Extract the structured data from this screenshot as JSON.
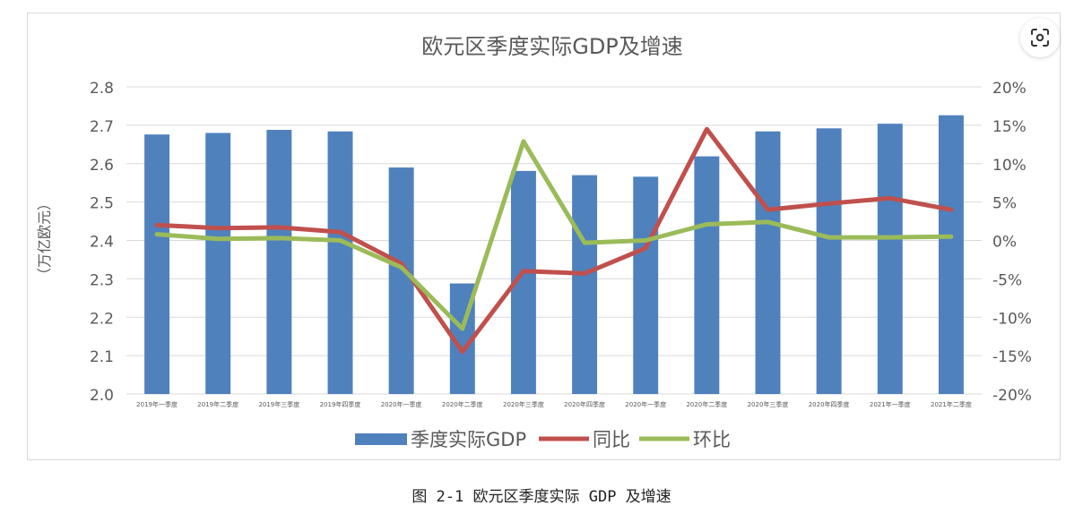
{
  "caption": "图 2-1 欧元区季度实际 GDP 及增速",
  "lens_icon": "visual-search-icon",
  "colors": {
    "bar": "#4f81bd",
    "yoy": "#c0504d",
    "qoq": "#9bbb59",
    "grid": "#d9d9d9",
    "axis_text": "#595959"
  },
  "chart_data": {
    "type": "bar",
    "title": "欧元区季度实际GDP及增速",
    "ylabel": "（万亿欧元）",
    "ylim": [
      2.0,
      2.8
    ],
    "y_ticks": [
      "2.0",
      "2.1",
      "2.2",
      "2.3",
      "2.4",
      "2.5",
      "2.6",
      "2.7",
      "2.8"
    ],
    "y2lim": [
      -20,
      20
    ],
    "y2_ticks": [
      "-20%",
      "-15%",
      "-10%",
      "-5%",
      "0%",
      "5%",
      "10%",
      "15%",
      "20%"
    ],
    "categories": [
      "2019年一季度",
      "2019年二季度",
      "2019年三季度",
      "2019年四季度",
      "2020年一季度",
      "2020年二季度",
      "2020年三季度",
      "2020年四季度",
      "2020年一季度",
      "2020年二季度",
      "2020年三季度",
      "2020年四季度",
      "2021年一季度",
      "2021年二季度"
    ],
    "legend_position": "bottom",
    "grid": true,
    "series": [
      {
        "name": "季度实际GDP",
        "type": "bar",
        "axis": "left",
        "values": [
          2.676,
          2.68,
          2.688,
          2.684,
          2.59,
          2.288,
          2.581,
          2.57,
          2.566,
          2.619,
          2.684,
          2.692,
          2.704,
          2.726
        ]
      },
      {
        "name": "同比",
        "type": "line",
        "axis": "right",
        "values": [
          2.0,
          1.6,
          1.7,
          1.1,
          -3.0,
          -14.5,
          -4.0,
          -4.3,
          -1.0,
          14.5,
          4.0,
          4.8,
          5.5,
          4.0
        ]
      },
      {
        "name": "环比",
        "type": "line",
        "axis": "right",
        "values": [
          0.8,
          0.2,
          0.3,
          0.0,
          -3.5,
          -11.5,
          12.9,
          -0.3,
          0.0,
          2.1,
          2.4,
          0.4,
          0.4,
          0.5
        ]
      }
    ]
  }
}
